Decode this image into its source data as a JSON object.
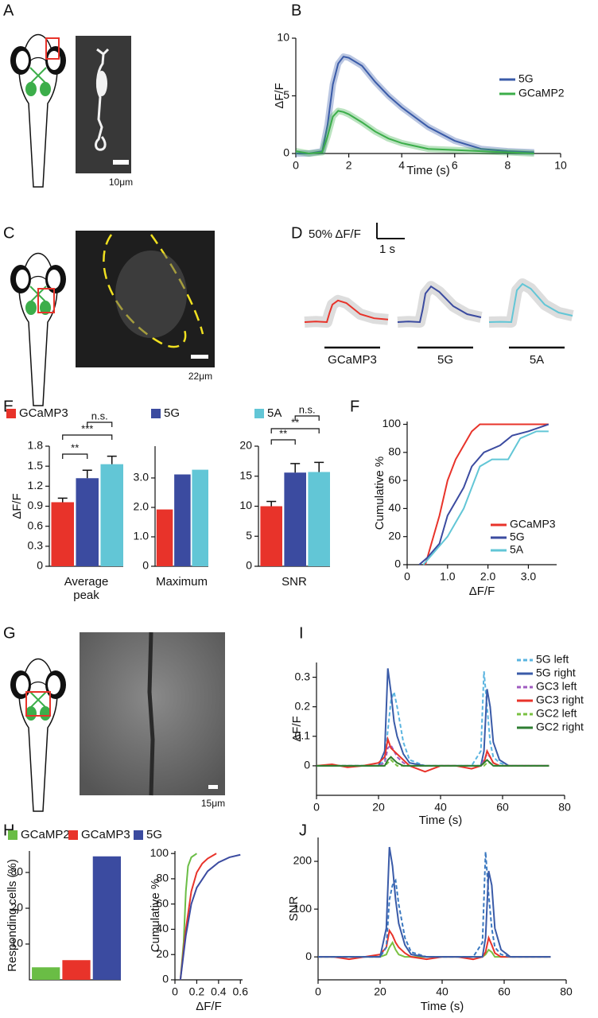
{
  "panels": [
    "A",
    "B",
    "C",
    "D",
    "E",
    "F",
    "G",
    "H",
    "I",
    "J"
  ],
  "scale_labels": [
    "10μm",
    "22μm",
    "15μm"
  ],
  "chart_data": [
    {
      "type": "line",
      "xlabel": "Time (s)",
      "ylabel": "ΔF/F",
      "xlim": [
        0,
        10
      ],
      "ylim": [
        0,
        10
      ],
      "xticks": [
        0,
        2,
        4,
        6,
        8,
        10
      ],
      "yticks": [
        0,
        5,
        10
      ],
      "x": [
        0,
        0.5,
        1,
        1.2,
        1.4,
        1.6,
        1.8,
        2,
        2.5,
        3,
        3.5,
        4,
        5,
        6,
        7,
        8,
        9
      ],
      "series": [
        {
          "name": "5G",
          "color": "#3a5ba8",
          "values": [
            0,
            0,
            0.2,
            2.5,
            6,
            7.8,
            8.4,
            8.3,
            7.6,
            6.2,
            5,
            4,
            2.3,
            1.1,
            0.4,
            0.2,
            0.1
          ]
        },
        {
          "name": "GCaMP2",
          "color": "#3cae4a",
          "values": [
            0.2,
            0,
            0.1,
            1.5,
            3.2,
            3.7,
            3.6,
            3.4,
            2.7,
            1.9,
            1.3,
            0.9,
            0.4,
            0.3,
            0.2,
            0.1,
            0
          ]
        }
      ]
    },
    {
      "type": "line",
      "scale_bar": {
        "y_value": 50,
        "y_label": "50% ΔF/F",
        "x_value": 1,
        "x_label": "1 s"
      },
      "x": [
        0,
        0.4,
        0.8,
        0.9,
        1.0,
        1.2,
        1.5,
        2,
        2.5,
        3
      ],
      "series": [
        {
          "name": "GCaMP3",
          "color": "#e8332a",
          "values": [
            0,
            2,
            0,
            30,
            55,
            68,
            60,
            25,
            12,
            8
          ]
        },
        {
          "name": "5G",
          "color": "#3b4ba0",
          "values": [
            0,
            2,
            0,
            40,
            90,
            112,
            95,
            50,
            25,
            15
          ]
        },
        {
          "name": "5A",
          "color": "#62c6d6",
          "values": [
            0,
            1,
            0,
            50,
            100,
            120,
            105,
            55,
            30,
            20
          ]
        }
      ]
    },
    {
      "type": "bar",
      "xlabel": "Average peak",
      "ylabel": "ΔF/F",
      "ylim": [
        0,
        1.8
      ],
      "yticks": [
        0,
        0.3,
        0.6,
        0.9,
        1.2,
        1.5,
        1.8
      ],
      "values": [
        0.96,
        1.32,
        1.53
      ],
      "errors": [
        0.06,
        0.12,
        0.12
      ],
      "colors": [
        "#e8332a",
        "#3b4ba0",
        "#62c6d6"
      ],
      "legend": [
        {
          "name": "GCaMP3",
          "color": "#e8332a"
        },
        {
          "name": "5G",
          "color": "#3b4ba0"
        },
        {
          "name": "5A",
          "color": "#62c6d6"
        }
      ],
      "annotations": [
        "**",
        "***",
        "n.s."
      ]
    },
    {
      "type": "bar",
      "xlabel": "Maximum",
      "ylim": [
        0,
        4.08
      ],
      "yticks": [
        0,
        {
          "value": 1,
          "label": "1.0"
        },
        {
          "value": 2,
          "label": "2.0"
        },
        {
          "value": 3,
          "label": "3.0"
        }
      ],
      "values": [
        1.93,
        3.12,
        3.28
      ],
      "colors": [
        "#e8332a",
        "#3b4ba0",
        "#62c6d6"
      ]
    },
    {
      "type": "bar",
      "xlabel": "SNR",
      "ylim": [
        0,
        20
      ],
      "yticks": [
        0,
        5,
        10,
        15,
        20
      ],
      "values": [
        10.0,
        15.6,
        15.7
      ],
      "errors": [
        0.8,
        1.5,
        1.6
      ],
      "colors": [
        "#e8332a",
        "#3b4ba0",
        "#62c6d6"
      ],
      "annotations": [
        "**",
        "**",
        "n.s."
      ]
    },
    {
      "type": "line",
      "xlabel": "ΔF/F",
      "ylabel": "Cumulative %",
      "xlim": [
        0,
        3.7
      ],
      "ylim": [
        0,
        102
      ],
      "xticks": [
        0,
        {
          "value": 1,
          "label": "1.0"
        },
        {
          "value": 2,
          "label": "2.0"
        },
        {
          "value": 3,
          "label": "3.0"
        }
      ],
      "yticks": [
        0,
        20,
        40,
        60,
        80,
        100
      ],
      "series": [
        {
          "name": "GCaMP3",
          "color": "#e8332a",
          "x": [
            0.45,
            0.6,
            0.8,
            1.0,
            1.2,
            1.4,
            1.6,
            1.8,
            2.2,
            3.5
          ],
          "values": [
            0,
            15,
            35,
            60,
            75,
            85,
            95,
            100,
            100,
            100
          ]
        },
        {
          "name": "5G",
          "color": "#3b4ba0",
          "x": [
            0.3,
            0.5,
            0.8,
            1.0,
            1.2,
            1.4,
            1.6,
            1.9,
            2.3,
            2.6,
            3.0,
            3.5
          ],
          "values": [
            0,
            5,
            15,
            35,
            45,
            55,
            70,
            80,
            85,
            92,
            95,
            100
          ]
        },
        {
          "name": "5A",
          "color": "#62c6d6",
          "x": [
            0.4,
            0.7,
            1.0,
            1.2,
            1.4,
            1.6,
            1.8,
            2.1,
            2.5,
            2.8,
            3.2,
            3.5
          ],
          "values": [
            0,
            10,
            20,
            30,
            40,
            55,
            70,
            75,
            75,
            90,
            95,
            95
          ]
        }
      ]
    },
    {
      "type": "bar",
      "ylabel": "Responding cells (%)",
      "ylim": [
        0,
        36
      ],
      "yticks": [
        10,
        20,
        30
      ],
      "values": [
        3.5,
        5.5,
        34.5
      ],
      "colors": [
        "#6abd45",
        "#e8332a",
        "#3b4ba0"
      ],
      "legend": [
        {
          "name": "GCaMP2",
          "color": "#6abd45"
        },
        {
          "name": "GCaMP3",
          "color": "#e8332a"
        },
        {
          "name": "5G",
          "color": "#3b4ba0"
        }
      ]
    },
    {
      "type": "line",
      "xlabel": "ΔF/F",
      "ylabel": "Cumulative %",
      "xlim": [
        0,
        0.62
      ],
      "ylim": [
        0,
        102
      ],
      "xticks": [
        0,
        0.2,
        0.4,
        0.6
      ],
      "yticks": [
        0,
        20,
        40,
        60,
        80,
        100
      ],
      "series": [
        {
          "color": "#6abd45",
          "x": [
            0.05,
            0.08,
            0.1,
            0.12,
            0.15,
            0.2
          ],
          "values": [
            0,
            30,
            70,
            90,
            97,
            100
          ]
        },
        {
          "color": "#e8332a",
          "x": [
            0.05,
            0.1,
            0.15,
            0.2,
            0.25,
            0.3,
            0.38
          ],
          "values": [
            0,
            40,
            70,
            85,
            92,
            96,
            100
          ]
        },
        {
          "color": "#3b4ba0",
          "x": [
            0.05,
            0.1,
            0.15,
            0.2,
            0.3,
            0.4,
            0.5,
            0.6
          ],
          "values": [
            0,
            35,
            60,
            73,
            86,
            93,
            97,
            99
          ]
        }
      ]
    },
    {
      "type": "line",
      "xlabel": "Time (s)",
      "ylabel": "ΔF/F",
      "xlim": [
        0,
        80
      ],
      "ylim": [
        -0.1,
        0.35
      ],
      "xticks": [
        0,
        20,
        40,
        60,
        80
      ],
      "yticks": [
        0,
        0.1,
        0.2,
        0.3
      ],
      "x": [
        0,
        5,
        10,
        15,
        20,
        22,
        23,
        24,
        25,
        26,
        28,
        30,
        35,
        40,
        45,
        50,
        53,
        54,
        55,
        56,
        57,
        59,
        62,
        65,
        70,
        75
      ],
      "series": [
        {
          "name": "5G left",
          "color": "#5ab4e0",
          "dash": true,
          "values": [
            0,
            0,
            0,
            0,
            0,
            0.02,
            0.12,
            0.22,
            0.25,
            0.2,
            0.08,
            0.02,
            0,
            0,
            0,
            0,
            0.05,
            0.32,
            0.2,
            0.08,
            0.03,
            0.01,
            0,
            0,
            0,
            0
          ]
        },
        {
          "name": "5G right",
          "color": "#3a5ba8",
          "values": [
            0,
            0,
            0,
            0,
            0,
            0.05,
            0.33,
            0.25,
            0.15,
            0.1,
            0.04,
            0.01,
            0,
            0,
            0,
            0,
            0,
            0.05,
            0.26,
            0.2,
            0.08,
            0.02,
            0,
            0,
            0,
            0
          ]
        },
        {
          "name": "GC3 left",
          "color": "#a05cc0",
          "dash": true,
          "values": [
            0,
            0,
            0,
            0,
            0,
            0.01,
            0.06,
            0.07,
            0.05,
            0.03,
            0.01,
            0,
            0,
            0,
            0,
            0,
            0,
            0.02,
            0.04,
            0.03,
            0.01,
            0,
            0,
            0,
            0,
            0
          ]
        },
        {
          "name": "GC3 right",
          "color": "#e8332a",
          "values": [
            0,
            0.005,
            -0.005,
            0,
            0.01,
            0.03,
            0.09,
            0.06,
            0.05,
            0.04,
            0.02,
            0,
            -0.02,
            0,
            0,
            -0.01,
            0,
            0.01,
            0.05,
            0.03,
            0.01,
            0,
            0,
            0,
            0,
            0
          ]
        },
        {
          "name": "GC2 left",
          "color": "#7ac142",
          "dash": true,
          "values": [
            0,
            0,
            0,
            0,
            0,
            0,
            0.01,
            0.02,
            0.01,
            0,
            0,
            0,
            0,
            0,
            0,
            0,
            0,
            0,
            0.01,
            0.01,
            0,
            0,
            0,
            0,
            0,
            0
          ]
        },
        {
          "name": "GC2 right",
          "color": "#2e7d32",
          "values": [
            0,
            0,
            0,
            0,
            0,
            0,
            0.02,
            0.03,
            0.02,
            0.01,
            0,
            0,
            0,
            0,
            0,
            0,
            0,
            0.01,
            0.02,
            0.01,
            0,
            0,
            0,
            0,
            0,
            0
          ]
        }
      ]
    },
    {
      "type": "line",
      "xlabel": "Time (s)",
      "ylabel": "SNR",
      "xlim": [
        0,
        80
      ],
      "ylim": [
        -48,
        250
      ],
      "xticks": [
        0,
        20,
        40,
        60,
        80
      ],
      "yticks": [
        0,
        100,
        200
      ],
      "x": [
        0,
        5,
        10,
        15,
        20,
        22,
        23,
        24,
        25,
        26,
        28,
        30,
        35,
        40,
        45,
        50,
        53,
        54,
        55,
        56,
        57,
        59,
        62,
        65,
        70,
        75
      ],
      "series": [
        {
          "color": "#7ac142",
          "values": [
            0,
            0,
            0,
            0,
            0,
            5,
            20,
            30,
            15,
            5,
            0,
            0,
            0,
            0,
            0,
            0,
            0,
            5,
            15,
            10,
            0,
            0,
            0,
            0,
            0,
            0
          ]
        },
        {
          "color": "#e8332a",
          "values": [
            0,
            0,
            -5,
            0,
            5,
            20,
            55,
            45,
            30,
            20,
            8,
            0,
            -5,
            0,
            0,
            -5,
            0,
            10,
            40,
            25,
            8,
            0,
            0,
            0,
            0,
            0
          ]
        },
        {
          "color": "#3a78c0",
          "dash": true,
          "values": [
            0,
            0,
            0,
            0,
            0,
            20,
            120,
            150,
            160,
            110,
            40,
            10,
            0,
            0,
            0,
            0,
            30,
            220,
            130,
            60,
            20,
            5,
            0,
            0,
            0,
            0
          ]
        },
        {
          "color": "#3a5ba8",
          "values": [
            0,
            0,
            0,
            0,
            0,
            60,
            230,
            190,
            120,
            70,
            25,
            5,
            0,
            0,
            0,
            0,
            0,
            40,
            180,
            150,
            60,
            15,
            0,
            0,
            0,
            0
          ]
        }
      ]
    }
  ]
}
